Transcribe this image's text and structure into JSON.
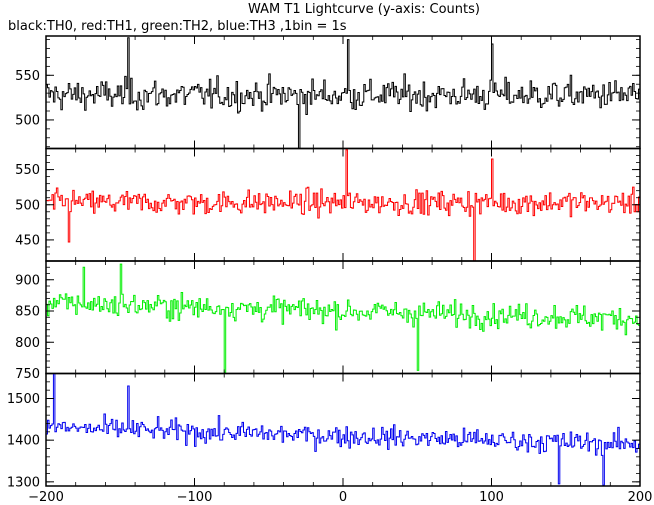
{
  "chart_data": {
    "type": "line",
    "title": "WAM T1 Lightcurve (y-axis: Counts)",
    "subtitle": "black:TH0, red:TH1, green:TH2, blue:TH3 ,1bin = 1s",
    "xlabel": "",
    "ylabel": "",
    "xlim": [
      -200,
      200
    ],
    "x_ticks": [
      -200,
      -100,
      0,
      100,
      200
    ],
    "grid": false,
    "panels": [
      {
        "series_name": "TH0",
        "color": "#000000",
        "ylim": [
          468,
          594
        ],
        "y_ticks": [
          500,
          550
        ],
        "mean": 528,
        "noise": 22,
        "trend": 0,
        "peaks": [
          {
            "x": 3,
            "y": 590
          },
          {
            "x": 100,
            "y": 585
          },
          {
            "x": -145,
            "y": 592
          }
        ],
        "dips": [
          {
            "x": -30,
            "y": 468
          }
        ]
      },
      {
        "series_name": "TH1",
        "color": "#ff0000",
        "ylim": [
          420,
          580
        ],
        "y_ticks": [
          450,
          500,
          550
        ],
        "mean": 503,
        "noise": 22,
        "trend": 0,
        "peaks": [
          {
            "x": 2,
            "y": 578
          },
          {
            "x": 100,
            "y": 565
          }
        ],
        "dips": [
          {
            "x": -185,
            "y": 447
          },
          {
            "x": 88,
            "y": 420
          }
        ]
      },
      {
        "series_name": "TH2",
        "color": "#00ee00",
        "ylim": [
          750,
          930
        ],
        "y_ticks": [
          750,
          800,
          850,
          900
        ],
        "mean": 850,
        "noise": 25,
        "trend": -25,
        "peaks": [
          {
            "x": -150,
            "y": 925
          },
          {
            "x": -175,
            "y": 920
          }
        ],
        "dips": [
          {
            "x": -80,
            "y": 752
          },
          {
            "x": 50,
            "y": 755
          }
        ]
      },
      {
        "series_name": "TH3",
        "color": "#0000ee",
        "ylim": [
          1290,
          1560
        ],
        "y_ticks": [
          1300,
          1400,
          1500
        ],
        "mean": 1410,
        "noise": 33,
        "trend": -40,
        "peaks": [
          {
            "x": -195,
            "y": 1560
          },
          {
            "x": -145,
            "y": 1530
          }
        ],
        "dips": [
          {
            "x": 175,
            "y": 1292
          },
          {
            "x": 145,
            "y": 1295
          }
        ]
      }
    ]
  }
}
